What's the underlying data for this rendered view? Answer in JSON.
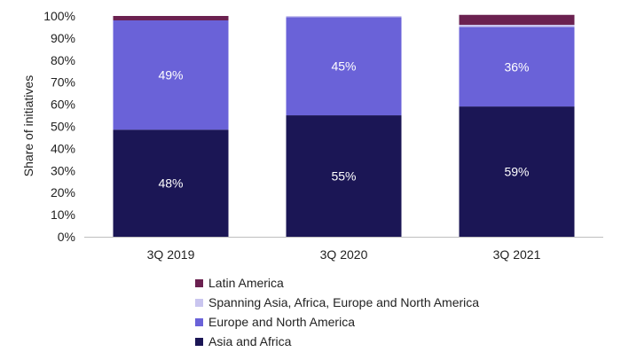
{
  "chart_data": {
    "type": "bar",
    "stacked": true,
    "categories": [
      "3Q 2019",
      "3Q 2020",
      "3Q 2021"
    ],
    "ylabel": "Share of initiatives",
    "ylim": [
      0,
      100
    ],
    "yticks": [
      "0%",
      "10%",
      "20%",
      "30%",
      "40%",
      "50%",
      "60%",
      "70%",
      "80%",
      "90%",
      "100%"
    ],
    "legend_position": "bottom",
    "series": [
      {
        "name": "Asia and Africa",
        "color": "#1b1655",
        "values": [
          48.5,
          55,
          59
        ],
        "labels": [
          "48%",
          "55%",
          "59%"
        ]
      },
      {
        "name": "Europe and North America",
        "color": "#6a62d8",
        "values": [
          49.5,
          44.5,
          36
        ],
        "labels": [
          "49%",
          "45%",
          ""
        ]
      },
      {
        "name": "Spanning Asia, Africa, Europe and North America",
        "color": "#c9c5ef",
        "values": [
          0,
          0.5,
          1
        ],
        "labels": [
          "",
          "",
          ""
        ]
      },
      {
        "name": "Latin America",
        "color": "#6b2150",
        "values": [
          2,
          0,
          4.5
        ],
        "labels": [
          "",
          "",
          ""
        ]
      }
    ],
    "extra_labels": {
      "2_1": "36%"
    }
  }
}
